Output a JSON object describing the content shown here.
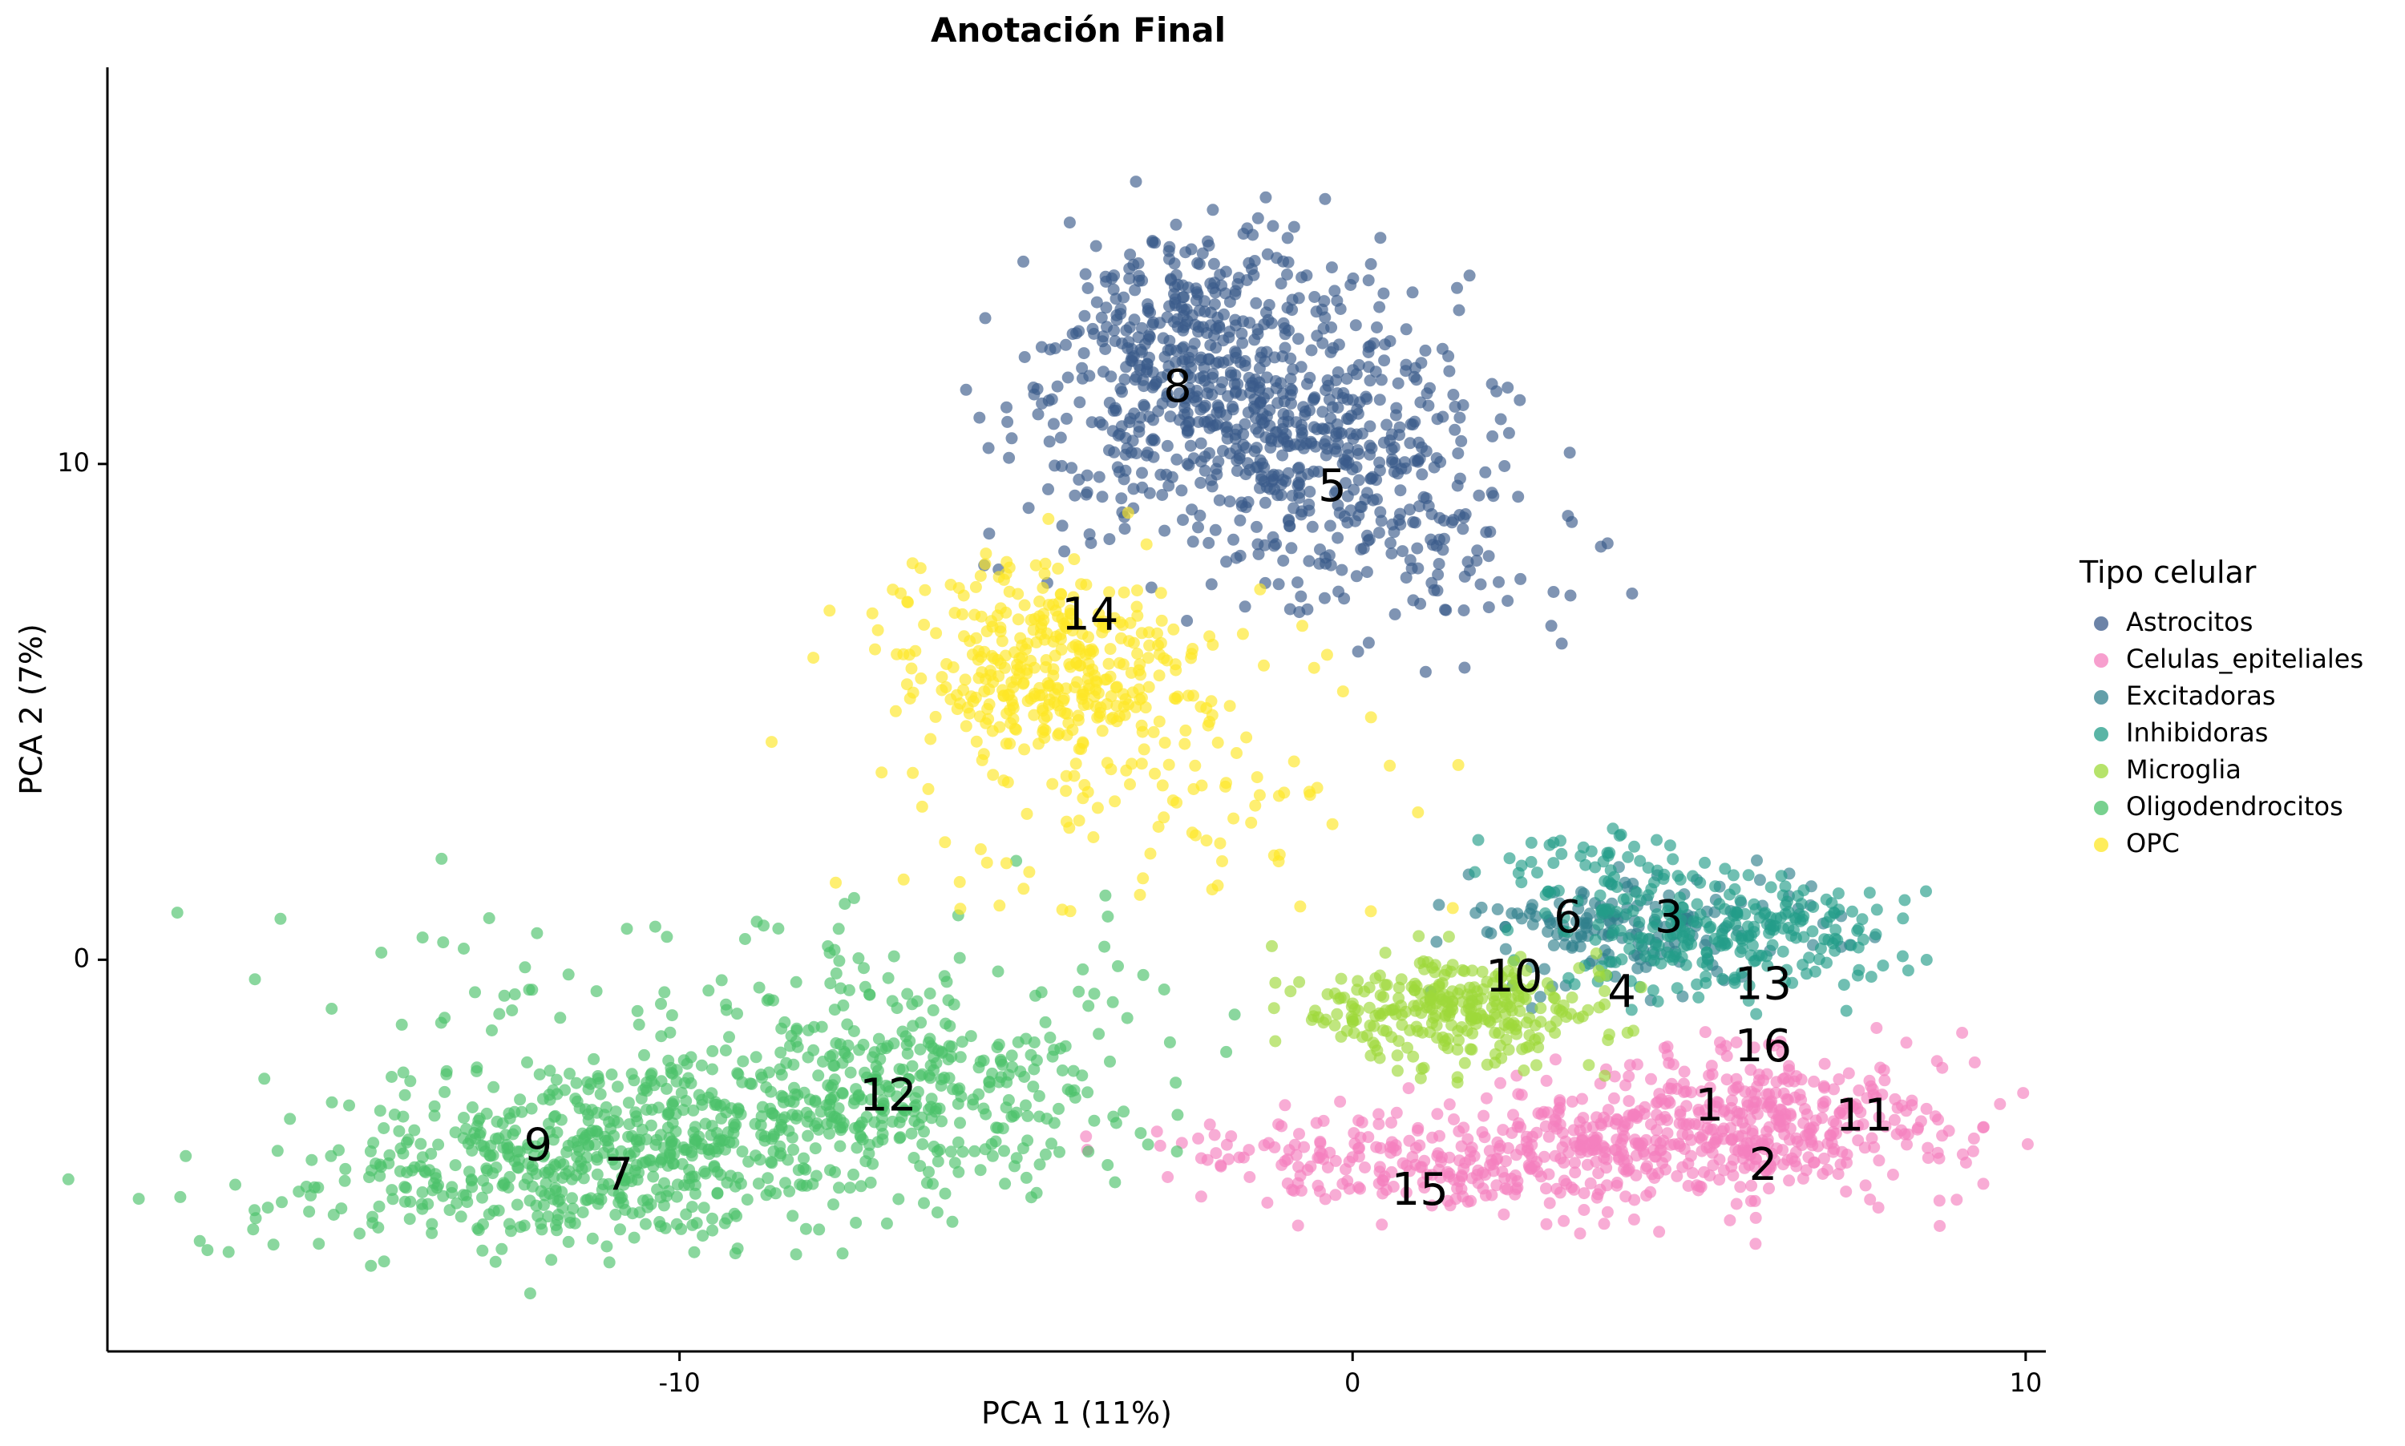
{
  "chart_data": {
    "type": "scatter",
    "title": "Anotación Final",
    "xlabel": "PCA 1 (11%)",
    "ylabel": "PCA 2 (7%)",
    "xlim": [
      -18.5,
      10.3
    ],
    "ylim": [
      -7.9,
      18.0
    ],
    "x_ticks": [
      -10,
      0,
      10
    ],
    "x_tick_labels": [
      "-10",
      "0",
      "10"
    ],
    "y_ticks": [
      0,
      10
    ],
    "y_tick_labels": [
      "0",
      "10"
    ],
    "grid": false,
    "legend": {
      "title": "Tipo celular",
      "position": "right",
      "entries": [
        {
          "label": "Astrocitos",
          "color": "#3B5A8A"
        },
        {
          "label": "Celulas_epiteliales",
          "color": "#F47FBE"
        },
        {
          "label": "Excitadoras",
          "color": "#2F7F8C"
        },
        {
          "label": "Inhibidoras",
          "color": "#239C88"
        },
        {
          "label": "Microglia",
          "color": "#9ED93A"
        },
        {
          "label": "Oligodendrocitos",
          "color": "#4BC16A"
        },
        {
          "label": "OPC",
          "color": "#FDE725"
        }
      ]
    },
    "series": [
      {
        "name": "Astrocitos",
        "color": "#3B5A8A",
        "clusters": [
          {
            "center": [
              -1.6,
              11.0
            ],
            "sd": [
              1.4,
              1.7
            ],
            "angle": -40,
            "n": 420
          },
          {
            "center": [
              -0.2,
              9.7
            ],
            "sd": [
              1.9,
              1.1
            ],
            "angle": -40,
            "n": 320
          },
          {
            "center": [
              -2.6,
              12.8
            ],
            "sd": [
              0.9,
              1.1
            ],
            "angle": -40,
            "n": 200
          }
        ]
      },
      {
        "name": "Celulas_epiteliales",
        "color": "#F47FBE",
        "clusters": [
          {
            "center": [
              6.2,
              -3.3
            ],
            "sd": [
              1.4,
              0.75
            ],
            "angle": 0,
            "n": 380
          },
          {
            "center": [
              0.8,
              -4.1
            ],
            "sd": [
              2.0,
              0.45
            ],
            "angle": 0,
            "n": 230
          },
          {
            "center": [
              3.5,
              -3.6
            ],
            "sd": [
              1.2,
              0.6
            ],
            "angle": 0,
            "n": 160
          }
        ]
      },
      {
        "name": "Excitadoras",
        "color": "#2F7F8C",
        "clusters": [
          {
            "center": [
              4.2,
              0.7
            ],
            "sd": [
              1.3,
              0.55
            ],
            "angle": 0,
            "n": 170
          }
        ]
      },
      {
        "name": "Inhibidoras",
        "color": "#239C88",
        "clusters": [
          {
            "center": [
              5.7,
              0.5
            ],
            "sd": [
              1.2,
              0.6
            ],
            "angle": 0,
            "n": 240
          },
          {
            "center": [
              3.4,
              1.8
            ],
            "sd": [
              0.9,
              0.5
            ],
            "angle": 0,
            "n": 60
          }
        ]
      },
      {
        "name": "Microglia",
        "color": "#9ED93A",
        "clusters": [
          {
            "center": [
              1.6,
              -1.0
            ],
            "sd": [
              1.1,
              0.55
            ],
            "angle": 0,
            "n": 300
          }
        ]
      },
      {
        "name": "Oligodendrocitos",
        "color": "#4BC16A",
        "clusters": [
          {
            "center": [
              -11.5,
              -4.1
            ],
            "sd": [
              2.2,
              0.85
            ],
            "angle": 6,
            "n": 560
          },
          {
            "center": [
              -7.0,
              -2.8
            ],
            "sd": [
              1.9,
              0.95
            ],
            "angle": 6,
            "n": 380
          },
          {
            "center": [
              -9.0,
              -1.0
            ],
            "sd": [
              3.2,
              1.4
            ],
            "angle": 0,
            "n": 130
          }
        ]
      },
      {
        "name": "OPC",
        "color": "#FDE725",
        "clusters": [
          {
            "center": [
              -4.5,
              6.0
            ],
            "sd": [
              1.3,
              1.0
            ],
            "angle": -15,
            "n": 380
          },
          {
            "center": [
              -3.0,
              3.2
            ],
            "sd": [
              2.0,
              1.3
            ],
            "angle": 0,
            "n": 90
          }
        ]
      }
    ],
    "cluster_labels": [
      {
        "text": "8",
        "x": -2.6,
        "y": 11.5
      },
      {
        "text": "5",
        "x": -0.3,
        "y": 9.5
      },
      {
        "text": "14",
        "x": -3.9,
        "y": 6.9
      },
      {
        "text": "6",
        "x": 3.2,
        "y": 0.8
      },
      {
        "text": "3",
        "x": 4.7,
        "y": 0.8
      },
      {
        "text": "10",
        "x": 2.4,
        "y": -0.4
      },
      {
        "text": "4",
        "x": 4.0,
        "y": -0.7
      },
      {
        "text": "13",
        "x": 6.1,
        "y": -0.55
      },
      {
        "text": "16",
        "x": 6.1,
        "y": -1.8
      },
      {
        "text": "1",
        "x": 5.3,
        "y": -3.0
      },
      {
        "text": "11",
        "x": 7.6,
        "y": -3.2
      },
      {
        "text": "2",
        "x": 6.1,
        "y": -4.2
      },
      {
        "text": "15",
        "x": 1.0,
        "y": -4.7
      },
      {
        "text": "12",
        "x": -6.9,
        "y": -2.8
      },
      {
        "text": "9",
        "x": -12.1,
        "y": -3.8
      },
      {
        "text": "7",
        "x": -10.9,
        "y": -4.4
      }
    ]
  }
}
